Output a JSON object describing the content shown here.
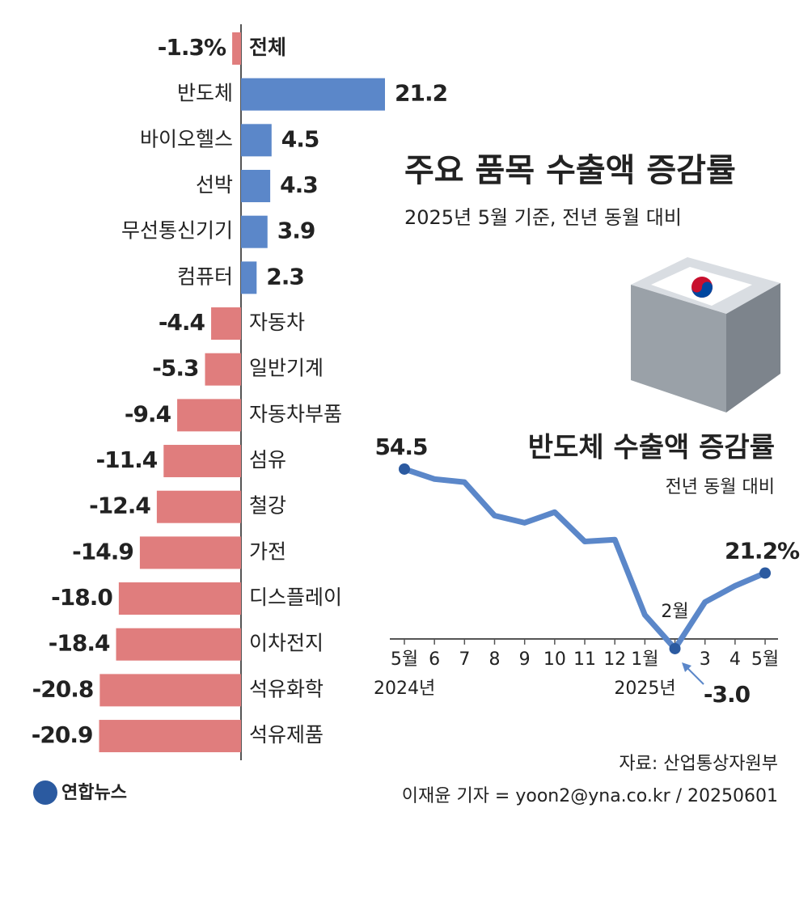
{
  "chart_data": [
    {
      "type": "hbar",
      "title": "주요 품목 수출액 증감률",
      "subtitle": "2025년 5월 기준, 전년 동월 대비",
      "categories": [
        "전체",
        "반도체",
        "바이오헬스",
        "선박",
        "무선통신기기",
        "컴퓨터",
        "자동차",
        "일반기계",
        "자동차부품",
        "섬유",
        "철강",
        "가전",
        "디스플레이",
        "이차전지",
        "석유화학",
        "석유제품"
      ],
      "values": [
        -1.3,
        21.2,
        4.5,
        4.3,
        3.9,
        2.3,
        -4.4,
        -5.3,
        -9.4,
        -11.4,
        -12.4,
        -14.9,
        -18.0,
        -18.4,
        -20.8,
        -20.9
      ],
      "value_labels": [
        "-1.3%",
        "21.2",
        "4.5",
        "4.3",
        "3.9",
        "2.3",
        "-4.4",
        "-5.3",
        "-9.4",
        "-11.4",
        "-12.4",
        "-14.9",
        "-18.0",
        "-18.4",
        "-20.8",
        "-20.9"
      ],
      "xlim": [
        -21.2,
        21.2
      ],
      "positive_color": "#5b87c9",
      "negative_color": "#e07d7d"
    },
    {
      "type": "line",
      "title": "반도체 수출액 증감률",
      "subtitle": "전년 동월 대비",
      "categories": [
        "5월",
        "6",
        "7",
        "8",
        "9",
        "10",
        "11",
        "12",
        "1월",
        "2월",
        "3",
        "4",
        "5월"
      ],
      "x_group_labels": [
        "2024년",
        "2025년"
      ],
      "values": [
        54.5,
        51.3,
        50.3,
        39.6,
        37.3,
        40.7,
        31.3,
        31.9,
        7.8,
        -3.0,
        11.9,
        17.1,
        21.2
      ],
      "value_labels": [
        "54.5",
        null,
        null,
        null,
        null,
        null,
        null,
        null,
        null,
        "-3.0",
        null,
        null,
        "21.2%"
      ],
      "ylim": [
        -5,
        60
      ],
      "color": "#5b87c9",
      "marker_color": "#2b5aa0"
    }
  ],
  "footer": {
    "source": "자료: 산업통상자원부",
    "credit": "이재윤 기자 = yoon2@yna.co.kr / 20250601",
    "logo": "연합뉴스"
  }
}
